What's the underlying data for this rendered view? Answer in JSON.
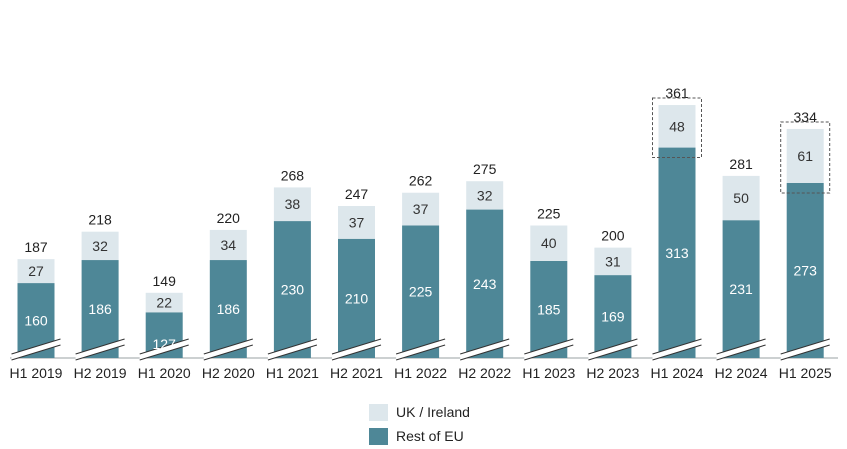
{
  "chart_data": {
    "type": "bar",
    "stacked": true,
    "axis_break": true,
    "categories": [
      "H1 2019",
      "H2 2019",
      "H1 2020",
      "H2 2020",
      "H1 2021",
      "H2 2021",
      "H1 2022",
      "H2 2022",
      "H1 2023",
      "H2 2023",
      "H1 2024",
      "H2 2024",
      "H1 2025"
    ],
    "series": [
      {
        "name": "Rest of EU",
        "color": "#4e8797",
        "values": [
          160,
          186,
          127,
          186,
          230,
          210,
          225,
          243,
          185,
          169,
          313,
          231,
          273
        ]
      },
      {
        "name": "UK / Ireland",
        "color": "#dde7ec",
        "values": [
          27,
          32,
          22,
          34,
          38,
          37,
          37,
          32,
          40,
          31,
          48,
          50,
          61
        ]
      }
    ],
    "totals": [
      187,
      218,
      149,
      220,
      268,
      247,
      262,
      275,
      225,
      200,
      361,
      281,
      334
    ],
    "highlighted": [
      "H1 2024",
      "H1 2025"
    ],
    "legend": {
      "position": "bottom-center"
    }
  }
}
